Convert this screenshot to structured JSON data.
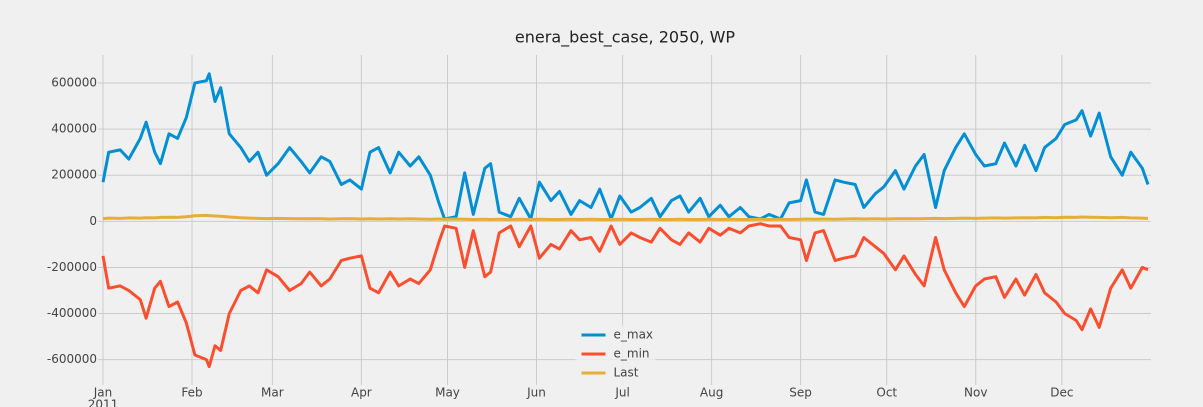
{
  "chart_data": {
    "type": "line",
    "title": "enera_best_case, 2050, WP",
    "x": [
      0,
      2,
      6,
      9,
      13,
      15,
      18,
      20,
      23,
      26,
      29,
      32,
      36,
      37,
      39,
      41,
      44,
      48,
      51,
      54,
      57,
      61,
      65,
      69,
      72,
      76,
      79,
      83,
      86,
      90,
      93,
      96,
      100,
      103,
      107,
      110,
      114,
      117,
      119,
      123,
      126,
      129,
      133,
      135,
      138,
      142,
      145,
      149,
      152,
      156,
      159,
      163,
      166,
      170,
      173,
      177,
      180,
      184,
      187,
      191,
      194,
      198,
      201,
      204,
      208,
      211,
      215,
      218,
      222,
      225,
      229,
      232,
      236,
      239,
      243,
      245,
      248,
      251,
      255,
      258,
      262,
      265,
      269,
      272,
      276,
      279,
      283,
      286,
      290,
      293,
      297,
      300,
      304,
      307,
      311,
      314,
      318,
      321,
      325,
      328,
      332,
      335,
      339,
      341,
      344,
      347,
      351,
      355,
      358,
      362,
      364
    ],
    "series": [
      {
        "name": "e_max",
        "color": "#008fd5",
        "values": [
          170000,
          300000,
          310000,
          270000,
          360000,
          430000,
          300000,
          250000,
          380000,
          360000,
          450000,
          600000,
          610000,
          640000,
          520000,
          580000,
          380000,
          320000,
          260000,
          300000,
          200000,
          250000,
          320000,
          260000,
          210000,
          280000,
          260000,
          160000,
          180000,
          140000,
          300000,
          320000,
          210000,
          300000,
          240000,
          280000,
          200000,
          80000,
          10000,
          20000,
          210000,
          30000,
          230000,
          250000,
          40000,
          20000,
          100000,
          10000,
          170000,
          90000,
          130000,
          30000,
          90000,
          60000,
          140000,
          10000,
          110000,
          40000,
          60000,
          100000,
          20000,
          90000,
          110000,
          40000,
          100000,
          20000,
          70000,
          20000,
          60000,
          20000,
          10000,
          30000,
          10000,
          80000,
          90000,
          180000,
          40000,
          30000,
          180000,
          170000,
          160000,
          60000,
          120000,
          150000,
          220000,
          140000,
          240000,
          290000,
          60000,
          220000,
          320000,
          380000,
          290000,
          240000,
          250000,
          340000,
          240000,
          330000,
          220000,
          320000,
          360000,
          420000,
          440000,
          480000,
          370000,
          470000,
          280000,
          200000,
          300000,
          230000,
          160000
        ]
      },
      {
        "name": "e_min",
        "color": "#fc4f30",
        "values": [
          -150000,
          -290000,
          -280000,
          -300000,
          -340000,
          -420000,
          -290000,
          -260000,
          -370000,
          -350000,
          -440000,
          -580000,
          -600000,
          -630000,
          -540000,
          -560000,
          -400000,
          -300000,
          -280000,
          -310000,
          -210000,
          -240000,
          -300000,
          -270000,
          -220000,
          -280000,
          -250000,
          -170000,
          -160000,
          -150000,
          -290000,
          -310000,
          -220000,
          -280000,
          -250000,
          -270000,
          -210000,
          -90000,
          -20000,
          -30000,
          -200000,
          -40000,
          -240000,
          -220000,
          -50000,
          -20000,
          -110000,
          -20000,
          -160000,
          -100000,
          -120000,
          -40000,
          -80000,
          -70000,
          -130000,
          -20000,
          -100000,
          -50000,
          -70000,
          -90000,
          -30000,
          -80000,
          -100000,
          -50000,
          -90000,
          -30000,
          -60000,
          -30000,
          -50000,
          -20000,
          -10000,
          -20000,
          -20000,
          -70000,
          -80000,
          -170000,
          -50000,
          -40000,
          -170000,
          -160000,
          -150000,
          -70000,
          -110000,
          -140000,
          -210000,
          -150000,
          -230000,
          -280000,
          -70000,
          -210000,
          -310000,
          -370000,
          -280000,
          -250000,
          -240000,
          -330000,
          -250000,
          -320000,
          -230000,
          -310000,
          -350000,
          -400000,
          -430000,
          -470000,
          -380000,
          -460000,
          -290000,
          -210000,
          -290000,
          -200000,
          -210000
        ]
      },
      {
        "name": "Last",
        "color": "#e5ae38",
        "values": [
          12000,
          14000,
          13000,
          15000,
          14000,
          16000,
          15000,
          17000,
          18000,
          17000,
          20000,
          24000,
          26000,
          25000,
          23000,
          22000,
          19000,
          16000,
          14000,
          13000,
          12000,
          13000,
          12000,
          11000,
          12000,
          11000,
          10000,
          11000,
          12000,
          10000,
          11000,
          10000,
          11000,
          10000,
          11000,
          10000,
          9000,
          10000,
          9000,
          10000,
          9000,
          8000,
          9000,
          8000,
          9000,
          8000,
          9000,
          8000,
          9000,
          8000,
          8000,
          9000,
          8000,
          9000,
          8000,
          8000,
          9000,
          8000,
          8000,
          9000,
          8000,
          8000,
          9000,
          8000,
          8000,
          9000,
          8000,
          9000,
          8000,
          8000,
          9000,
          8000,
          9000,
          8000,
          9000,
          10000,
          9000,
          10000,
          9000,
          10000,
          11000,
          10000,
          11000,
          10000,
          11000,
          12000,
          11000,
          12000,
          13000,
          12000,
          13000,
          14000,
          13000,
          14000,
          15000,
          14000,
          15000,
          16000,
          15000,
          17000,
          16000,
          18000,
          17000,
          19000,
          18000,
          17000,
          16000,
          17000,
          15000,
          14000,
          13000
        ]
      }
    ],
    "xlim": [
      0,
      364
    ],
    "xticks": [
      {
        "value": 0,
        "label": "Jan"
      },
      {
        "value": 31,
        "label": "Feb"
      },
      {
        "value": 59,
        "label": "Mar"
      },
      {
        "value": 90,
        "label": "Apr"
      },
      {
        "value": 120,
        "label": "May"
      },
      {
        "value": 151,
        "label": "Jun"
      },
      {
        "value": 181,
        "label": "Jul"
      },
      {
        "value": 212,
        "label": "Aug"
      },
      {
        "value": 243,
        "label": "Sep"
      },
      {
        "value": 273,
        "label": "Oct"
      },
      {
        "value": 304,
        "label": "Nov"
      },
      {
        "value": 334,
        "label": "Dec"
      }
    ],
    "x_year_label": "2011",
    "ylim": [
      -710000,
      700000
    ],
    "yticks": [
      -600000,
      -400000,
      -200000,
      0,
      200000,
      400000,
      600000
    ],
    "grid": true,
    "legend": "lower center"
  }
}
